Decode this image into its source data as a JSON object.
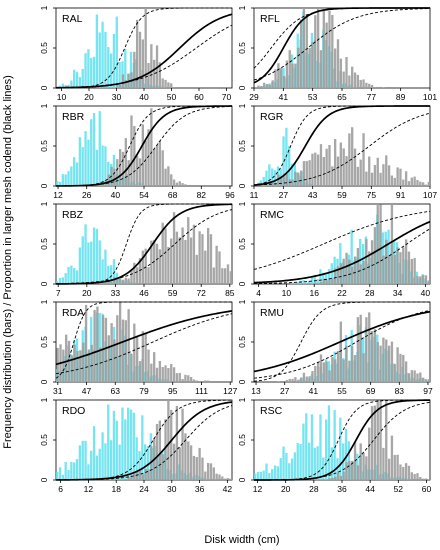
{
  "figure": {
    "ylabel": "Frequency distribution (bars) / Proportion in larger mesh codend (black lines)",
    "xlabel": "Disk width (cm)"
  },
  "colors": {
    "cyan": "#5ee0ee",
    "grey": "#a0a0a0",
    "line": "#000000"
  },
  "chart_data": [
    {
      "type": "bar",
      "code": "RAL",
      "xticks": [
        "10",
        "20",
        "30",
        "40",
        "50",
        "60",
        "70"
      ],
      "xlim": [
        8,
        72
      ],
      "ylim": [
        0,
        1
      ],
      "yticks": [
        "0",
        "0.5",
        "1"
      ],
      "series": [
        {
          "color": "cyan",
          "center": 27,
          "sd": 7,
          "peak": 0.85
        },
        {
          "color": "grey",
          "center": 40,
          "sd": 4,
          "peak": 0.95
        }
      ],
      "curve": {
        "l50": 53,
        "k": 0.13
      },
      "lower": {
        "l50": 59,
        "k": 0.1
      },
      "upper": {
        "l50": 33,
        "k": 0.32
      }
    },
    {
      "type": "bar",
      "code": "RFL",
      "xticks": [
        "29",
        "41",
        "53",
        "65",
        "77",
        "89",
        "101"
      ],
      "xlim": [
        29,
        101
      ],
      "ylim": [
        0,
        1
      ],
      "yticks": [
        "0",
        "0.5",
        "1"
      ],
      "series": [
        {
          "color": "cyan",
          "center": 52,
          "sd": 7,
          "peak": 0.8
        },
        {
          "color": "grey",
          "center": 54,
          "sd": 9,
          "peak": 0.98
        }
      ],
      "curve": {
        "l50": 41,
        "k": 0.22
      },
      "lower": {
        "l50": 51,
        "k": 0.1
      },
      "upper": {
        "l50": 36,
        "k": 0.16
      }
    },
    {
      "type": "bar",
      "code": "RBR",
      "xticks": [
        "12",
        "26",
        "40",
        "54",
        "68",
        "82",
        "96"
      ],
      "xlim": [
        11,
        97
      ],
      "ylim": [
        0,
        1
      ],
      "yticks": [
        "0",
        "0.5",
        "1"
      ],
      "series": [
        {
          "color": "cyan",
          "center": 30,
          "sd": 9,
          "peak": 0.75
        },
        {
          "color": "grey",
          "center": 52,
          "sd": 8,
          "peak": 0.95
        }
      ],
      "curve": {
        "l50": 53,
        "k": 0.18
      },
      "lower": {
        "l50": 60,
        "k": 0.14
      },
      "upper": {
        "l50": 47,
        "k": 0.22
      }
    },
    {
      "type": "bar",
      "code": "RGR",
      "xticks": [
        "11",
        "27",
        "43",
        "59",
        "75",
        "91",
        "107"
      ],
      "xlim": [
        11,
        107
      ],
      "ylim": [
        0,
        1
      ],
      "yticks": [
        "0",
        "0.5",
        "1"
      ],
      "series": [
        {
          "color": "cyan",
          "center": 28,
          "sd": 6,
          "peak": 0.6
        },
        {
          "color": "grey",
          "center": 60,
          "sd": 20,
          "peak": 0.6
        }
      ],
      "curve": {
        "l50": 39,
        "k": 0.16
      },
      "lower": {
        "l50": 74,
        "k": 0.07
      },
      "upper": {
        "l50": 31,
        "k": 0.22
      }
    },
    {
      "type": "bar",
      "code": "RBZ",
      "xticks": [
        "7",
        "20",
        "33",
        "46",
        "59",
        "72",
        "85"
      ],
      "xlim": [
        6,
        86
      ],
      "ylim": [
        0,
        1
      ],
      "yticks": [
        "0",
        "0.5",
        "1"
      ],
      "series": [
        {
          "color": "cyan",
          "center": 23,
          "sd": 7,
          "peak": 0.8
        },
        {
          "color": "grey",
          "center": 62,
          "sd": 13,
          "peak": 0.95
        }
      ],
      "curve": {
        "l50": 50,
        "k": 0.16
      },
      "lower": {
        "l50": 60,
        "k": 0.1
      },
      "upper": {
        "l50": 38,
        "k": 0.32
      }
    },
    {
      "type": "bar",
      "code": "RMC",
      "xticks": [
        "4",
        "10",
        "16",
        "22",
        "28",
        "34",
        "40"
      ],
      "xlim": [
        3,
        41
      ],
      "ylim": [
        0,
        1
      ],
      "yticks": [
        "0",
        "0.5",
        "1"
      ],
      "series": [
        {
          "color": "cyan",
          "center": 28,
          "sd": 6,
          "peak": 0.7
        },
        {
          "color": "grey",
          "center": 30,
          "sd": 5,
          "peak": 0.95
        }
      ],
      "curve": {
        "l50": 32,
        "k": 0.14
      },
      "lower": {
        "l50": 36,
        "k": 0.16
      },
      "upper": {
        "l50": 18,
        "k": 0.1
      }
    },
    {
      "type": "bar",
      "code": "RDA",
      "xticks": [
        "31",
        "47",
        "63",
        "79",
        "95",
        "111",
        "127"
      ],
      "xlim": [
        30,
        128
      ],
      "ylim": [
        0,
        1
      ],
      "yticks": [
        "0",
        "0.5",
        "1"
      ],
      "series": [
        {
          "color": "cyan",
          "center": 55,
          "sd": 15,
          "peak": 0.75
        },
        {
          "color": "grey",
          "center": 58,
          "sd": 20,
          "peak": 0.9
        }
      ],
      "curve": {
        "l50": 67,
        "k": 0.034
      },
      "lower": {
        "l50": 84,
        "k": 0.04
      },
      "upper": {
        "l50": 40,
        "k": 0.3
      }
    },
    {
      "type": "bar",
      "code": "RMU",
      "xticks": [
        "13",
        "27",
        "41",
        "55",
        "69",
        "83",
        "97"
      ],
      "xlim": [
        12,
        98
      ],
      "ylim": [
        0,
        1
      ],
      "yticks": [
        "0",
        "0.5",
        "1"
      ],
      "series": [
        {
          "color": "cyan",
          "center": 65,
          "sd": 13,
          "peak": 0.55
        },
        {
          "color": "grey",
          "center": 65,
          "sd": 14,
          "peak": 0.8
        }
      ],
      "curve": {
        "l50": 54,
        "k": 0.045
      },
      "lower": {
        "l50": 62,
        "k": 0.06
      },
      "upper": {
        "l50": 35,
        "k": 0.2
      }
    },
    {
      "type": "bar",
      "code": "RDO",
      "xticks": [
        "6",
        "12",
        "18",
        "24",
        "30",
        "36",
        "42"
      ],
      "xlim": [
        5,
        43
      ],
      "ylim": [
        0,
        1
      ],
      "yticks": [
        "0",
        "0.5",
        "1"
      ],
      "series": [
        {
          "color": "cyan",
          "center": 19,
          "sd": 7,
          "peak": 0.8
        },
        {
          "color": "grey",
          "center": 31,
          "sd": 4,
          "peak": 0.95
        }
      ],
      "curve": {
        "l50": 30,
        "k": 0.28
      },
      "lower": {
        "l50": 33,
        "k": 0.26
      },
      "upper": {
        "l50": 26,
        "k": 0.38
      }
    },
    {
      "type": "bar",
      "code": "RSC",
      "xticks": [
        "12",
        "20",
        "28",
        "36",
        "44",
        "52",
        "60"
      ],
      "xlim": [
        11,
        61
      ],
      "ylim": [
        0,
        1
      ],
      "yticks": [
        "0",
        "0.5",
        "1"
      ],
      "series": [
        {
          "color": "cyan",
          "center": 30,
          "sd": 9,
          "peak": 0.75
        },
        {
          "color": "grey",
          "center": 46,
          "sd": 5,
          "peak": 0.9
        }
      ],
      "curve": {
        "l50": 40,
        "k": 0.32
      },
      "lower": {
        "l50": 45,
        "k": 0.22
      },
      "upper": {
        "l50": 35,
        "k": 0.38
      }
    }
  ]
}
